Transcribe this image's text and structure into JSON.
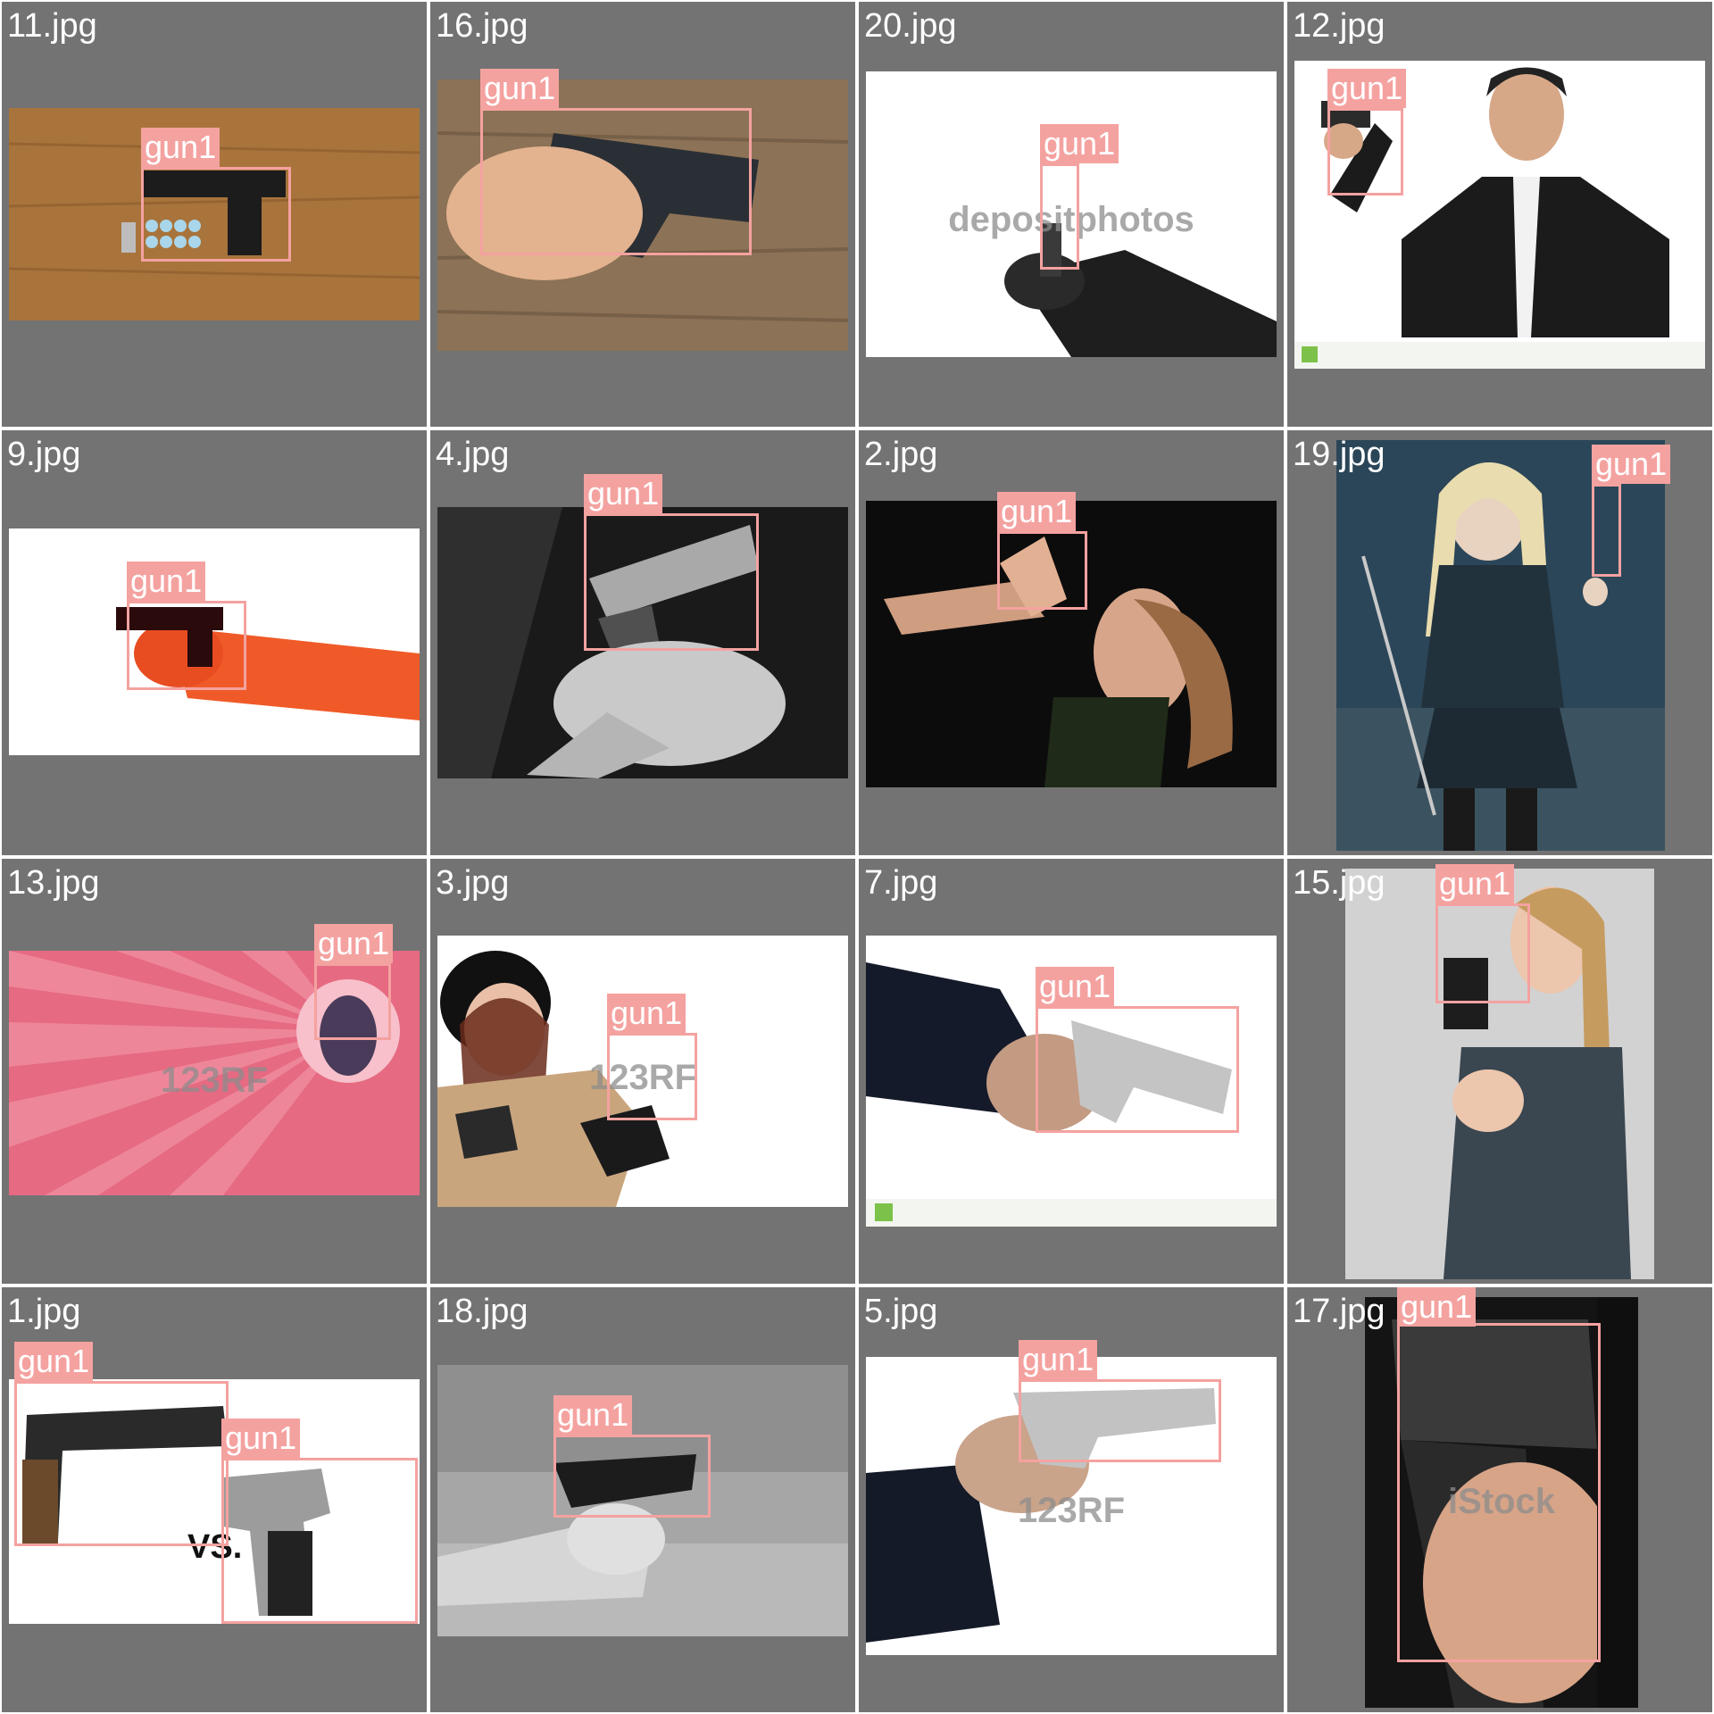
{
  "colors": {
    "tile_bg": "#737373",
    "box": "#f4a2a0",
    "label_text": "#ffffff"
  },
  "tiles": [
    {
      "filename": "11.jpg",
      "scene": "gun-on-wood",
      "watermark": "",
      "boxes": [
        {
          "label": "gun1"
        }
      ]
    },
    {
      "filename": "16.jpg",
      "scene": "hand-gun-wood",
      "watermark": "",
      "boxes": [
        {
          "label": "gun1"
        }
      ]
    },
    {
      "filename": "20.jpg",
      "scene": "white-arm",
      "watermark": "depositphotos",
      "boxes": [
        {
          "label": "gun1"
        }
      ]
    },
    {
      "filename": "12.jpg",
      "scene": "man-jacket",
      "watermark": "",
      "boxes": [
        {
          "label": "gun1"
        }
      ]
    },
    {
      "filename": "9.jpg",
      "scene": "red-arm",
      "watermark": "",
      "boxes": [
        {
          "label": "gun1"
        }
      ]
    },
    {
      "filename": "4.jpg",
      "scene": "bw-hands",
      "watermark": "",
      "boxes": [
        {
          "label": "gun1"
        }
      ]
    },
    {
      "filename": "2.jpg",
      "scene": "dark-woman",
      "watermark": "",
      "boxes": [
        {
          "label": "gun1"
        }
      ]
    },
    {
      "filename": "19.jpg",
      "scene": "blue-poster",
      "watermark": "",
      "boxes": [
        {
          "label": "gun1"
        }
      ]
    },
    {
      "filename": "13.jpg",
      "scene": "pink-rays",
      "watermark": "123RF",
      "boxes": [
        {
          "label": "gun1"
        }
      ]
    },
    {
      "filename": "3.jpg",
      "scene": "helmet-woman",
      "watermark": "123RF",
      "boxes": [
        {
          "label": "gun1"
        }
      ]
    },
    {
      "filename": "7.jpg",
      "scene": "sleeve-gun",
      "watermark": "",
      "boxes": [
        {
          "label": "gun1"
        }
      ]
    },
    {
      "filename": "15.jpg",
      "scene": "grey-woman",
      "watermark": "",
      "boxes": [
        {
          "label": "gun1"
        }
      ]
    },
    {
      "filename": "1.jpg",
      "scene": "vs-guns",
      "watermark": "",
      "boxes": [
        {
          "label": "gun1"
        },
        {
          "label": "gun1"
        }
      ]
    },
    {
      "filename": "18.jpg",
      "scene": "bw-range",
      "watermark": "",
      "boxes": [
        {
          "label": "gun1"
        }
      ]
    },
    {
      "filename": "5.jpg",
      "scene": "sleeve-silver",
      "watermark": "123RF",
      "boxes": [
        {
          "label": "gun1"
        }
      ]
    },
    {
      "filename": "17.jpg",
      "scene": "black-closeup",
      "watermark": "iStock",
      "boxes": [
        {
          "label": "gun1"
        }
      ]
    }
  ]
}
